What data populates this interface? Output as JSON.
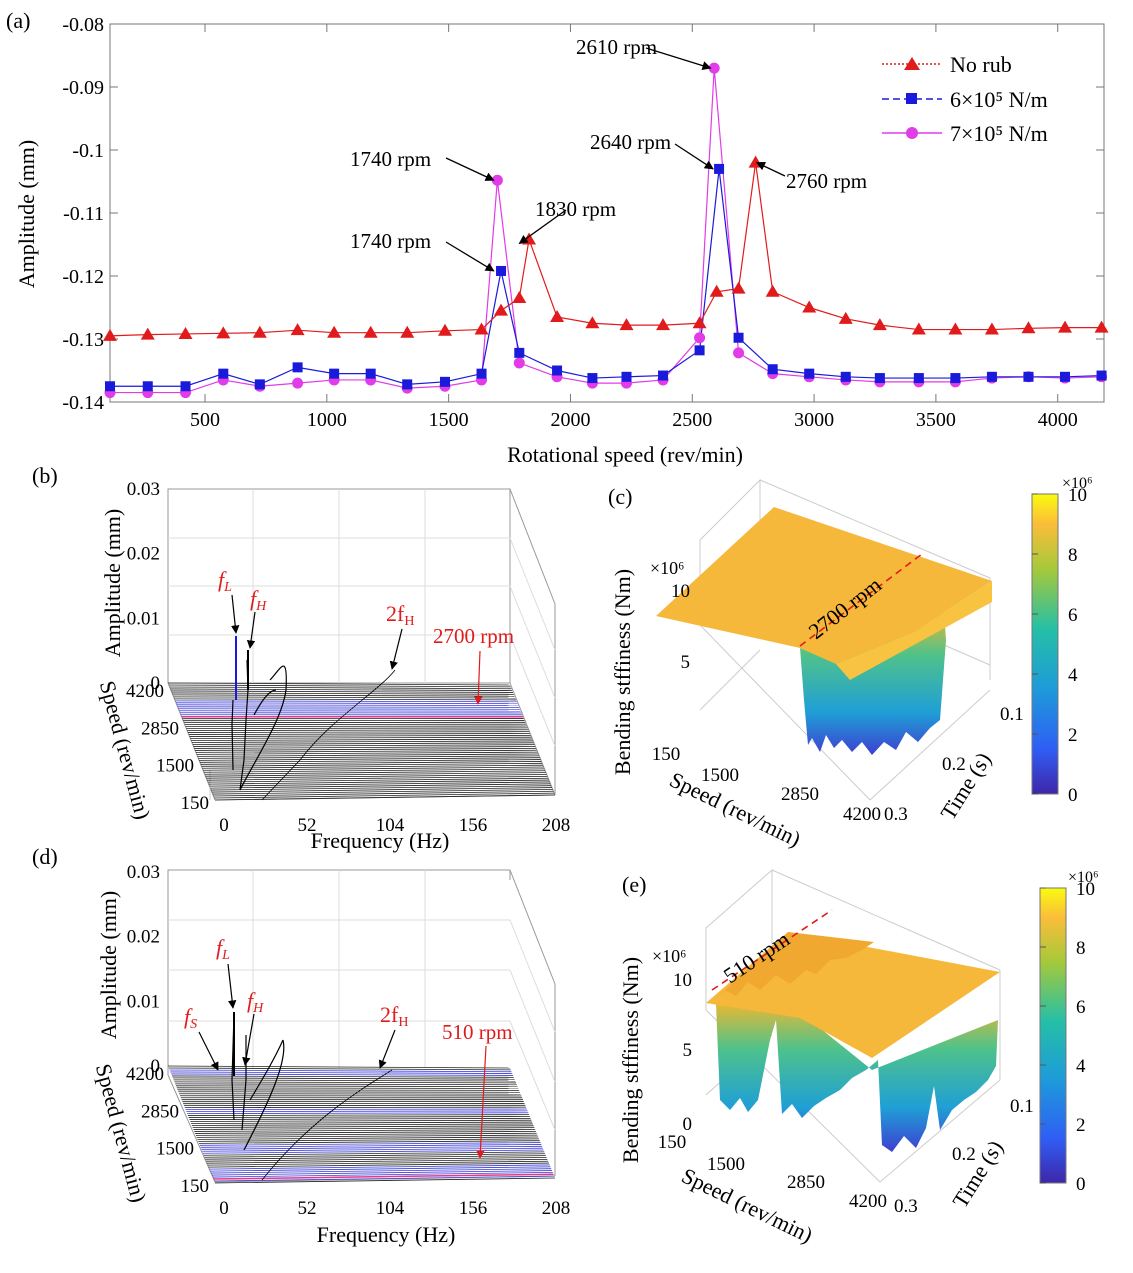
{
  "panels": {
    "a": "(a)",
    "b": "(b)",
    "c": "(c)",
    "d": "(d)",
    "e": "(e)"
  },
  "chart_data": [
    {
      "panel": "(a)",
      "type": "line",
      "xlabel": "Rotational speed (rev/min)",
      "ylabel": "Amplitude (mm)",
      "xlim": [
        110,
        4190
      ],
      "ylim": [
        -0.14,
        -0.08
      ],
      "x_ticks": [
        "500",
        "1000",
        "1500",
        "2000",
        "2500",
        "3000",
        "3500",
        "4000"
      ],
      "y_ticks": [
        "-0.08",
        "-0.09",
        "-0.1",
        "-0.11",
        "-0.12",
        "-0.13",
        "-0.14"
      ],
      "legend_position": "top-right",
      "colors": {
        "no_rub": "#e11b1b",
        "k6": "#1a1adb",
        "k7": "#e23be8",
        "annot": "#000000"
      },
      "series": [
        {
          "name": "No rub",
          "x": [
            110,
            265,
            420,
            575,
            725,
            880,
            1030,
            1180,
            1330,
            1485,
            1635,
            1715,
            1790,
            1830,
            1945,
            2090,
            2230,
            2380,
            2530,
            2600,
            2690,
            2760,
            2830,
            2980,
            3130,
            3270,
            3430,
            3580,
            3730,
            3880,
            4030,
            4180
          ],
          "y": [
            -0.1295,
            -0.1293,
            -0.1292,
            -0.1291,
            -0.129,
            -0.1286,
            -0.129,
            -0.129,
            -0.129,
            -0.1287,
            -0.1285,
            -0.1255,
            -0.1235,
            -0.1142,
            -0.1265,
            -0.1275,
            -0.1278,
            -0.1278,
            -0.1275,
            -0.1225,
            -0.122,
            -0.102,
            -0.1225,
            -0.125,
            -0.1268,
            -0.1278,
            -0.1285,
            -0.1285,
            -0.1285,
            -0.1283,
            -0.1282,
            -0.1282
          ]
        },
        {
          "name": "6×10⁵ N/m",
          "x": [
            110,
            265,
            420,
            575,
            725,
            880,
            1030,
            1180,
            1330,
            1485,
            1635,
            1715,
            1790,
            1945,
            2090,
            2230,
            2380,
            2530,
            2610,
            2690,
            2830,
            2980,
            3130,
            3270,
            3430,
            3580,
            3730,
            3880,
            4030,
            4180
          ],
          "y": [
            -0.1375,
            -0.1375,
            -0.1375,
            -0.1355,
            -0.1372,
            -0.1345,
            -0.1355,
            -0.1355,
            -0.1372,
            -0.1368,
            -0.1355,
            -0.1192,
            -0.1322,
            -0.135,
            -0.1362,
            -0.136,
            -0.1358,
            -0.1318,
            -0.103,
            -0.1298,
            -0.1348,
            -0.1355,
            -0.136,
            -0.1362,
            -0.1362,
            -0.1362,
            -0.136,
            -0.136,
            -0.136,
            -0.1358
          ]
        },
        {
          "name": "7×10⁵ N/m",
          "x": [
            110,
            265,
            420,
            575,
            725,
            880,
            1030,
            1180,
            1330,
            1485,
            1635,
            1700,
            1790,
            1945,
            2090,
            2230,
            2380,
            2530,
            2590,
            2690,
            2830,
            2980,
            3130,
            3270,
            3430,
            3580,
            3730,
            3880,
            4030,
            4180
          ],
          "y": [
            -0.1385,
            -0.1385,
            -0.1385,
            -0.1365,
            -0.1375,
            -0.137,
            -0.1365,
            -0.1365,
            -0.1378,
            -0.1375,
            -0.1365,
            -0.1048,
            -0.1338,
            -0.136,
            -0.137,
            -0.137,
            -0.1365,
            -0.1298,
            -0.087,
            -0.1322,
            -0.1355,
            -0.136,
            -0.1365,
            -0.1368,
            -0.1368,
            -0.1368,
            -0.1362,
            -0.136,
            -0.1362,
            -0.136
          ]
        }
      ],
      "annotations": [
        {
          "text": "2610 rpm",
          "x": 2600,
          "y": -0.087
        },
        {
          "text": "1740 rpm",
          "x": 1710,
          "y": -0.1048
        },
        {
          "text": "2640 rpm",
          "x": 2610,
          "y": -0.103
        },
        {
          "text": "2760 rpm",
          "x": 2740,
          "y": -0.102
        },
        {
          "text": "1830 rpm",
          "x": 1815,
          "y": -0.1142
        },
        {
          "text": "1740 rpm",
          "x": 1710,
          "y": -0.1192
        }
      ]
    },
    {
      "panel": "(b)",
      "type": "waterfall",
      "xlabel": "Frequency (Hz)",
      "ylabel": "Speed (rev/min)",
      "zlabel": "Amplitude (mm)",
      "x_ticks": [
        "0",
        "52",
        "104",
        "156",
        "208"
      ],
      "y_ticks": [
        "150",
        "1500",
        "2850",
        "4200"
      ],
      "z_ticks": [
        "0",
        "0.01",
        "0.02",
        "0.03"
      ],
      "labels": {
        "fL": "f",
        "fL_sub": "L",
        "fH": "f",
        "fH_sub": "H",
        "twofH": "2f",
        "twofH_sub": "H",
        "rpm": "2700 rpm"
      }
    },
    {
      "panel": "(c)",
      "type": "surface",
      "xlabel": "Speed (rev/min)",
      "ylabel": "Time (s)",
      "zlabel": "Bending stffiness (Nm)",
      "zscale": "×10⁶",
      "x_ticks": [
        "150",
        "1500",
        "2850",
        "4200"
      ],
      "y_ticks": [
        "0.1",
        "0.2",
        "0.3"
      ],
      "z_ticks": [
        "5",
        "10"
      ],
      "colorbar_ticks": [
        "0",
        "2",
        "4",
        "6",
        "8",
        "10"
      ],
      "colorbar_scale": "×10⁶",
      "rpm_label": "2700 rpm"
    },
    {
      "panel": "(d)",
      "type": "waterfall",
      "xlabel": "Frequency (Hz)",
      "ylabel": "Speed (rev/min)",
      "zlabel": "Amplitude (mm)",
      "x_ticks": [
        "0",
        "52",
        "104",
        "156",
        "208"
      ],
      "y_ticks": [
        "150",
        "1500",
        "2850",
        "4200"
      ],
      "z_ticks": [
        "0",
        "0.01",
        "0.02",
        "0.03"
      ],
      "labels": {
        "fS": "f",
        "fS_sub": "S",
        "fL": "f",
        "fL_sub": "L",
        "fH": "f",
        "fH_sub": "H",
        "twofH": "2f",
        "twofH_sub": "H",
        "rpm": "510 rpm"
      }
    },
    {
      "panel": "(e)",
      "type": "surface",
      "xlabel": "Speed (rev/min)",
      "ylabel": "Time (s)",
      "zlabel": "Bending stffiness (Nm)",
      "zscale": "×10⁶",
      "x_ticks": [
        "150",
        "1500",
        "2850",
        "4200"
      ],
      "y_ticks": [
        "0.1",
        "0.2",
        "0.3"
      ],
      "z_ticks": [
        "0",
        "5",
        "10"
      ],
      "colorbar_ticks": [
        "0",
        "2",
        "4",
        "6",
        "8",
        "10"
      ],
      "colorbar_scale": "×10⁶",
      "rpm_label": "510 rpm"
    }
  ]
}
